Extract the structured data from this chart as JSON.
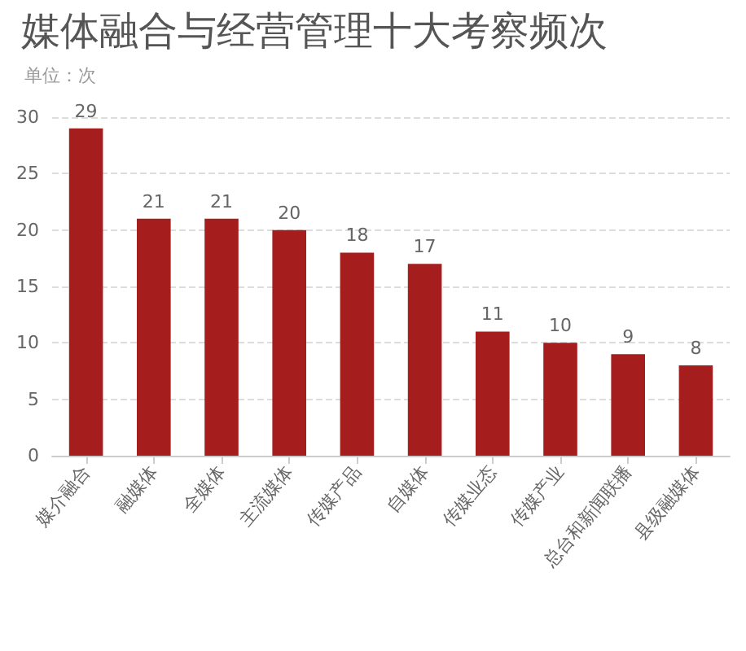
{
  "chart_data": {
    "type": "bar",
    "title": "媒体融合与经营管理十大考察频次",
    "subtitle": "单位：次",
    "categories": [
      "媒介融合",
      "融媒体",
      "全媒体",
      "主流媒体",
      "传媒产品",
      "自媒体",
      "传媒业态",
      "传媒产业",
      "总台和新闻联播",
      "县级融媒体"
    ],
    "values": [
      29,
      21,
      21,
      20,
      18,
      17,
      11,
      10,
      9,
      8
    ],
    "color": "#a51d1d",
    "ylim": [
      0,
      30
    ],
    "yticks": [
      0,
      5,
      10,
      15,
      20,
      25,
      30
    ],
    "grid": "y",
    "data_labels": true
  }
}
